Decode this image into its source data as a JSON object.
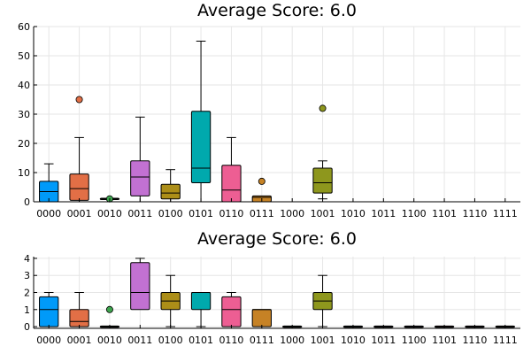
{
  "chart_data": [
    {
      "type": "box",
      "title": "Average Score: 6.0",
      "categories": [
        "0000",
        "0001",
        "0010",
        "0011",
        "0100",
        "0101",
        "0110",
        "0111",
        "1000",
        "1001",
        "1010",
        "1011",
        "1100",
        "1101",
        "1110",
        "1111"
      ],
      "ylim": [
        0,
        60
      ],
      "yticks": [
        0,
        10,
        20,
        30,
        40,
        50,
        60
      ],
      "grid": true,
      "boxes": [
        {
          "q1": 0,
          "median": 3.5,
          "q3": 7,
          "lo": 0,
          "hi": 13,
          "outliers": []
        },
        {
          "q1": 0.5,
          "median": 4.5,
          "q3": 9.5,
          "lo": 0,
          "hi": 22,
          "outliers": [
            35
          ]
        },
        {
          "q1": 1,
          "median": 1,
          "q3": 1,
          "lo": 1,
          "hi": 1,
          "outliers": [
            1
          ]
        },
        {
          "q1": 2,
          "median": 8.5,
          "q3": 14,
          "lo": 0,
          "hi": 29,
          "outliers": []
        },
        {
          "q1": 1,
          "median": 3,
          "q3": 6,
          "lo": 0,
          "hi": 11,
          "outliers": []
        },
        {
          "q1": 6.5,
          "median": 11.5,
          "q3": 31,
          "lo": 0,
          "hi": 55,
          "outliers": []
        },
        {
          "q1": 0,
          "median": 4,
          "q3": 12.5,
          "lo": 0,
          "hi": 22,
          "outliers": []
        },
        {
          "q1": 0,
          "median": 1.5,
          "q3": 2,
          "lo": 0,
          "hi": 2,
          "outliers": [
            7
          ]
        },
        {
          "q1": 0,
          "median": 0,
          "q3": 0,
          "lo": 0,
          "hi": 0,
          "outliers": [],
          "empty": true
        },
        {
          "q1": 3,
          "median": 6.5,
          "q3": 11.5,
          "lo": 1,
          "hi": 14,
          "outliers": [
            32
          ]
        },
        {
          "q1": 0,
          "median": 0,
          "q3": 0,
          "lo": 0,
          "hi": 0,
          "outliers": [],
          "empty": true
        },
        {
          "q1": 0,
          "median": 0,
          "q3": 0,
          "lo": 0,
          "hi": 0,
          "outliers": [],
          "empty": true
        },
        {
          "q1": 0,
          "median": 0,
          "q3": 0,
          "lo": 0,
          "hi": 0,
          "outliers": [],
          "empty": true
        },
        {
          "q1": 0,
          "median": 0,
          "q3": 0,
          "lo": 0,
          "hi": 0,
          "outliers": [],
          "empty": true
        },
        {
          "q1": 0,
          "median": 0,
          "q3": 0,
          "lo": 0,
          "hi": 0,
          "outliers": [],
          "empty": true
        },
        {
          "q1": 0,
          "median": 0,
          "q3": 0,
          "lo": 0,
          "hi": 0,
          "outliers": [],
          "empty": true
        }
      ]
    },
    {
      "type": "box",
      "title": "Average Score: 6.0",
      "categories": [
        "0000",
        "0001",
        "0010",
        "0011",
        "0100",
        "0101",
        "0110",
        "0111",
        "1000",
        "1001",
        "1010",
        "1011",
        "1100",
        "1101",
        "1110",
        "1111"
      ],
      "ylim": [
        -0.1,
        4.1
      ],
      "yticks": [
        0,
        1,
        2,
        3,
        4
      ],
      "grid": true,
      "boxes": [
        {
          "q1": 0,
          "median": 1,
          "q3": 1.75,
          "lo": 0,
          "hi": 2,
          "outliers": []
        },
        {
          "q1": 0,
          "median": 0.3,
          "q3": 1,
          "lo": 0,
          "hi": 2,
          "outliers": []
        },
        {
          "q1": 0,
          "median": 0,
          "q3": 0,
          "lo": 0,
          "hi": 0,
          "outliers": [
            1
          ]
        },
        {
          "q1": 1,
          "median": 2,
          "q3": 3.75,
          "lo": 1,
          "hi": 4,
          "outliers": []
        },
        {
          "q1": 1,
          "median": 1.5,
          "q3": 2,
          "lo": 0,
          "hi": 3,
          "outliers": []
        },
        {
          "q1": 1,
          "median": 2,
          "q3": 2,
          "lo": 0,
          "hi": 2,
          "outliers": []
        },
        {
          "q1": 0,
          "median": 1,
          "q3": 1.75,
          "lo": 0,
          "hi": 2,
          "outliers": []
        },
        {
          "q1": 0,
          "median": 1,
          "q3": 1,
          "lo": 0,
          "hi": 1,
          "outliers": []
        },
        {
          "q1": 0,
          "median": 0,
          "q3": 0,
          "lo": 0,
          "hi": 0,
          "outliers": []
        },
        {
          "q1": 1,
          "median": 1.5,
          "q3": 2,
          "lo": 0,
          "hi": 3,
          "outliers": []
        },
        {
          "q1": 0,
          "median": 0,
          "q3": 0,
          "lo": 0,
          "hi": 0,
          "outliers": []
        },
        {
          "q1": 0,
          "median": 0,
          "q3": 0,
          "lo": 0,
          "hi": 0,
          "outliers": []
        },
        {
          "q1": 0,
          "median": 0,
          "q3": 0,
          "lo": 0,
          "hi": 0,
          "outliers": []
        },
        {
          "q1": 0,
          "median": 0,
          "q3": 0,
          "lo": 0,
          "hi": 0,
          "outliers": []
        },
        {
          "q1": 0,
          "median": 0,
          "q3": 0,
          "lo": 0,
          "hi": 0,
          "outliers": []
        },
        {
          "q1": 0,
          "median": 0,
          "q3": 0,
          "lo": 0,
          "hi": 0,
          "outliers": []
        }
      ]
    }
  ],
  "palette": [
    "#009af9",
    "#e26f46",
    "#3ea44e",
    "#c271d2",
    "#ac8e18",
    "#00a9ad",
    "#ed5e93",
    "#c68225",
    "#00a98d",
    "#8e971d",
    "#00a9cd",
    "#9b7fe8",
    "#618df6",
    "#f05f73",
    "#dd64b5",
    "#6b9d59"
  ]
}
